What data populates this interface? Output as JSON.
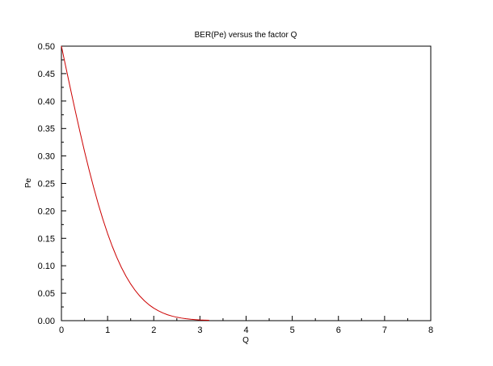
{
  "chart_data": {
    "type": "line",
    "title": "BER(Pe) versus the factor Q",
    "xlabel": "Q",
    "ylabel": "Pe",
    "xlim": [
      0,
      8
    ],
    "ylim": [
      0,
      0.5
    ],
    "x_ticks": [
      "0",
      "1",
      "2",
      "3",
      "4",
      "5",
      "6",
      "7",
      "8"
    ],
    "y_ticks": [
      "0.00",
      "0.05",
      "0.10",
      "0.15",
      "0.20",
      "0.25",
      "0.30",
      "0.35",
      "0.40",
      "0.45",
      "0.50"
    ],
    "grid": false,
    "legend": "none",
    "series": [
      {
        "color": "#cc0000",
        "x": [
          0,
          0.1,
          0.2,
          0.3,
          0.4,
          0.5,
          0.6,
          0.7,
          0.8,
          0.9,
          1.0,
          1.1,
          1.2,
          1.3,
          1.4,
          1.5,
          1.6,
          1.7,
          1.8,
          1.9,
          2.0,
          2.1,
          2.2,
          2.3,
          2.4,
          2.5,
          2.6,
          2.7,
          2.8,
          2.9,
          3.0,
          3.1,
          3.2
        ],
        "y": [
          0.5,
          0.4602,
          0.4207,
          0.3821,
          0.3446,
          0.3085,
          0.2743,
          0.242,
          0.2119,
          0.1841,
          0.1587,
          0.1357,
          0.1151,
          0.0968,
          0.0808,
          0.0668,
          0.0548,
          0.0446,
          0.0359,
          0.0287,
          0.0228,
          0.0179,
          0.0139,
          0.0107,
          0.0082,
          0.0062,
          0.0047,
          0.0035,
          0.0026,
          0.0019,
          0.0013,
          0.001,
          0.0007
        ]
      }
    ]
  },
  "colors": {
    "axis": "#000000",
    "curve": "#cc0000",
    "background": "#ffffff"
  }
}
